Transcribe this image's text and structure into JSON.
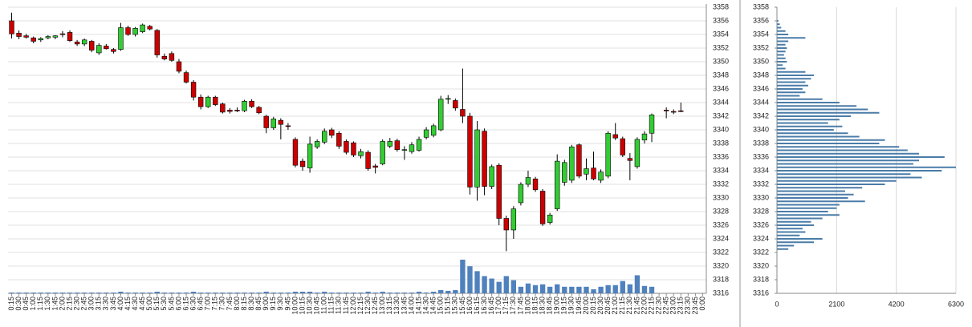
{
  "chart_data": [
    {
      "type": "candlestick",
      "categories": [
        "0:15",
        "0:30",
        "0:45",
        "1:00",
        "1:15",
        "1:30",
        "1:45",
        "2:00",
        "2:15",
        "2:30",
        "2:45",
        "3:00",
        "3:15",
        "3:30",
        "3:45",
        "4:00",
        "4:15",
        "4:30",
        "4:45",
        "5:00",
        "5:15",
        "5:30",
        "5:45",
        "6:00",
        "6:15",
        "6:30",
        "6:45",
        "7:00",
        "7:15",
        "7:30",
        "7:45",
        "8:00",
        "8:15",
        "8:30",
        "8:45",
        "9:00",
        "9:15",
        "9:30",
        "9:45",
        "10:00",
        "10:15",
        "10:30",
        "10:45",
        "11:00",
        "11:15",
        "11:30",
        "11:45",
        "12:00",
        "12:15",
        "12:30",
        "12:45",
        "13:00",
        "13:15",
        "13:30",
        "13:45",
        "14:00",
        "14:15",
        "14:30",
        "14:45",
        "15:00",
        "15:15",
        "15:30",
        "15:45",
        "16:00",
        "16:15",
        "16:30",
        "16:45",
        "17:00",
        "17:15",
        "17:30",
        "17:45",
        "18:00",
        "18:15",
        "18:30",
        "18:45",
        "19:00",
        "19:15",
        "19:30",
        "19:45",
        "20:00",
        "20:15",
        "20:30",
        "20:45",
        "21:00",
        "21:15",
        "21:30",
        "21:45",
        "22:00",
        "22:15",
        "22:30",
        "22:45",
        "23:00",
        "23:15",
        "23:30",
        "23:45",
        "0:00"
      ],
      "open": [
        3356,
        3354.2,
        3353.8,
        3353.5,
        3353.2,
        3353.5,
        3353.6,
        3354.1,
        3354.3,
        3352.9,
        3352.6,
        3353.0,
        3351.3,
        3352.3,
        3351.8,
        3351.8,
        3355.0,
        3354.0,
        3354.4,
        3355.2,
        3354.6,
        3350.8,
        3351.2,
        3350.0,
        3348.4,
        3347.0,
        3344.8,
        3343.4,
        3344.8,
        3343.8,
        3342.9,
        3342.9,
        3342.8,
        3344.2,
        3343.3,
        3342.0,
        3340.3,
        3341.4,
        3340.6,
        3338.6,
        3335.4,
        3334.4,
        3337.5,
        3338.2,
        3340.0,
        3339.5,
        3338.3,
        3338.1,
        3336.2,
        3336.7,
        3334.7,
        3335.0,
        3337.6,
        3338.4,
        3337.0,
        3336.8,
        3337.0,
        3338.9,
        3339.2,
        3340.0,
        3344.5,
        3344.3,
        3343.0,
        3342.0,
        3331.6,
        3339.8,
        3331.7,
        3334.8,
        3327.0,
        3325.3,
        3329.3,
        3332.0,
        3332.8,
        3331.0,
        3326.4,
        3328.4,
        3332.3,
        3332.6,
        3337.8,
        3333.5,
        3334.4,
        3332.6,
        3333.2,
        3339.3,
        3338.7,
        3335.8,
        3334.6,
        3338.5,
        3339.5,
        null,
        3342.9,
        3342.7,
        3342.8,
        null,
        null,
        null
      ],
      "high": [
        3357.2,
        3354.6,
        3354.1,
        3353.7,
        3353.6,
        3353.9,
        3353.9,
        3354.5,
        3354.6,
        3353.2,
        3353.4,
        3353.2,
        3352.7,
        3352.6,
        3352.0,
        3355.7,
        3355.3,
        3355.1,
        3355.6,
        3355.4,
        3354.8,
        3351.2,
        3351.5,
        3350.4,
        3348.7,
        3347.3,
        3345.2,
        3345.0,
        3345.0,
        3344.0,
        3343.2,
        3343.3,
        3344.4,
        3344.5,
        3343.5,
        3342.2,
        3341.9,
        3341.7,
        3341.0,
        3338.9,
        3335.8,
        3339.0,
        3338.6,
        3340.2,
        3340.3,
        3339.8,
        3338.6,
        3338.3,
        3337.2,
        3337.0,
        3335.0,
        3338.6,
        3338.8,
        3338.7,
        3337.6,
        3338.2,
        3339.0,
        3340.4,
        3340.9,
        3345.0,
        3345.1,
        3344.6,
        3349.0,
        3342.5,
        3341.3,
        3340.2,
        3334.9,
        3335.1,
        3327.4,
        3328.8,
        3332.3,
        3334.0,
        3333.1,
        3331.3,
        3327.8,
        3336.4,
        3335.6,
        3337.8,
        3338.0,
        3335.8,
        3336.8,
        3334.2,
        3339.8,
        3341.0,
        3339.0,
        3336.6,
        3338.9,
        3339.8,
        3342.4,
        null,
        3343.3,
        3343.0,
        3344.0,
        null,
        null,
        null
      ],
      "low": [
        3353.4,
        3353.3,
        3353.4,
        3352.7,
        3352.9,
        3353.3,
        3353.3,
        3353.6,
        3352.9,
        3352.3,
        3352.3,
        3351.4,
        3351.0,
        3351.8,
        3351.2,
        3351.6,
        3353.8,
        3353.7,
        3354.2,
        3354.6,
        3350.6,
        3350.2,
        3350.0,
        3348.3,
        3346.8,
        3344.3,
        3343.0,
        3343.2,
        3343.5,
        3342.4,
        3342.4,
        3342.6,
        3342.6,
        3343.2,
        3342.3,
        3339.5,
        3340.0,
        3338.6,
        3340.0,
        3334.5,
        3334.0,
        3333.7,
        3337.2,
        3337.9,
        3338.8,
        3337.2,
        3336.4,
        3336.0,
        3335.8,
        3334.0,
        3333.6,
        3334.8,
        3337.3,
        3336.8,
        3335.6,
        3336.5,
        3336.8,
        3338.6,
        3338.9,
        3339.8,
        3343.8,
        3342.8,
        3341.0,
        3330.5,
        3329.6,
        3330.4,
        3331.3,
        3326.0,
        3322.2,
        3324.0,
        3328.9,
        3331.6,
        3330.9,
        3325.9,
        3326.1,
        3328.1,
        3331.8,
        3332.2,
        3332.9,
        3332.6,
        3332.6,
        3332.2,
        3332.9,
        3338.5,
        3336.0,
        3332.6,
        3334.3,
        3338.0,
        3338.2,
        null,
        3341.7,
        3342.3,
        3342.6,
        null,
        null,
        null
      ],
      "close": [
        3354.1,
        3353.7,
        3353.6,
        3353.0,
        3353.4,
        3353.7,
        3353.8,
        3354.0,
        3353.1,
        3352.6,
        3353.2,
        3351.7,
        3352.4,
        3351.9,
        3351.5,
        3355.0,
        3354.0,
        3354.9,
        3355.4,
        3354.8,
        3351.0,
        3350.4,
        3350.2,
        3348.6,
        3347.0,
        3344.8,
        3343.4,
        3344.8,
        3343.7,
        3342.6,
        3342.7,
        3342.8,
        3344.2,
        3343.4,
        3342.5,
        3340.3,
        3341.6,
        3340.8,
        3340.5,
        3334.8,
        3334.6,
        3337.9,
        3338.3,
        3339.8,
        3339.2,
        3337.6,
        3336.7,
        3336.3,
        3336.8,
        3334.3,
        3334.5,
        3338.3,
        3338.3,
        3337.1,
        3337.1,
        3337.8,
        3338.6,
        3340.0,
        3340.6,
        3344.5,
        3344.6,
        3343.2,
        3342.0,
        3331.6,
        3340.0,
        3331.7,
        3334.6,
        3327.0,
        3325.3,
        3328.4,
        3332.0,
        3333.0,
        3331.2,
        3326.2,
        3327.5,
        3335.4,
        3335.2,
        3337.5,
        3333.2,
        3334.3,
        3332.8,
        3333.8,
        3339.5,
        3338.8,
        3336.3,
        3335.5,
        3338.6,
        3339.4,
        3342.2,
        null,
        3342.8,
        3342.6,
        3342.7,
        null,
        null,
        null
      ],
      "volume": [
        1,
        1,
        1,
        1,
        1,
        1,
        1,
        1,
        1,
        1,
        1,
        1,
        1,
        1,
        1,
        2,
        1,
        1,
        1,
        1,
        2,
        1,
        1,
        1,
        1,
        2,
        1,
        1,
        1,
        1,
        1,
        1,
        1,
        1,
        1,
        2,
        1,
        1,
        1,
        2,
        2,
        2,
        1,
        2,
        1,
        1,
        1,
        1,
        1,
        2,
        1,
        2,
        1,
        1,
        1,
        1,
        2,
        1,
        2,
        4,
        3,
        4,
        41,
        33,
        27,
        21,
        18,
        14,
        21,
        16,
        8,
        12,
        10,
        11,
        8,
        11,
        8,
        8,
        8,
        8,
        5,
        8,
        10,
        10,
        15,
        11,
        22,
        9,
        8,
        null,
        null,
        null,
        null,
        null,
        null,
        null
      ],
      "up_color": "#33cc33",
      "down_color": "#cc0000",
      "volume_color": "#4f81bd",
      "ylim": [
        3316,
        3358
      ],
      "yticks": [
        3316,
        3318,
        3320,
        3322,
        3324,
        3326,
        3328,
        3330,
        3332,
        3334,
        3336,
        3338,
        3340,
        3342,
        3344,
        3346,
        3348,
        3350,
        3352,
        3354,
        3356,
        3358
      ],
      "grid": true
    },
    {
      "type": "barh",
      "y": [
        3356,
        3355.5,
        3355,
        3354.5,
        3354,
        3353.5,
        3353,
        3352.5,
        3352,
        3351.5,
        3351,
        3350.5,
        3350,
        3349.5,
        3349,
        3348.5,
        3348,
        3347.5,
        3347,
        3346.5,
        3346,
        3345.5,
        3345,
        3344.5,
        3344,
        3343.5,
        3343,
        3342.5,
        3342,
        3341.5,
        3341,
        3340.5,
        3340,
        3339.5,
        3339,
        3338.5,
        3338,
        3337.5,
        3337,
        3336.5,
        3336,
        3335.5,
        3335,
        3334.5,
        3334,
        3333.5,
        3333,
        3332.5,
        3332,
        3331.5,
        3331,
        3330.5,
        3330,
        3329.5,
        3329,
        3328.5,
        3328,
        3327.5,
        3327,
        3326.5,
        3326,
        3325.5,
        3325,
        3324.5,
        3324,
        3323.5,
        3323,
        3322.5
      ],
      "values": [
        50,
        100,
        150,
        300,
        400,
        1000,
        400,
        300,
        350,
        300,
        250,
        300,
        350,
        200,
        300,
        1000,
        1300,
        1200,
        1000,
        1100,
        900,
        1000,
        800,
        1600,
        2200,
        2800,
        3200,
        3600,
        2600,
        2200,
        1800,
        2300,
        2000,
        2500,
        2900,
        3800,
        3600,
        4300,
        4600,
        5000,
        5900,
        5000,
        4800,
        6300,
        5800,
        4700,
        5100,
        4200,
        3800,
        3000,
        2400,
        2700,
        2500,
        3100,
        2200,
        2100,
        1800,
        2200,
        1600,
        1200,
        1300,
        900,
        1000,
        800,
        1600,
        1300,
        600,
        400
      ],
      "color": "#4a7ca8",
      "xlim": [
        0,
        6300
      ],
      "xticks": [
        0,
        2100,
        4200,
        6300
      ],
      "ylim": [
        3316,
        3358
      ],
      "yticks": [
        3316,
        3318,
        3320,
        3322,
        3324,
        3326,
        3328,
        3330,
        3332,
        3334,
        3336,
        3338,
        3340,
        3342,
        3344,
        3346,
        3348,
        3350,
        3352,
        3354,
        3356,
        3358
      ],
      "grid": true
    }
  ]
}
